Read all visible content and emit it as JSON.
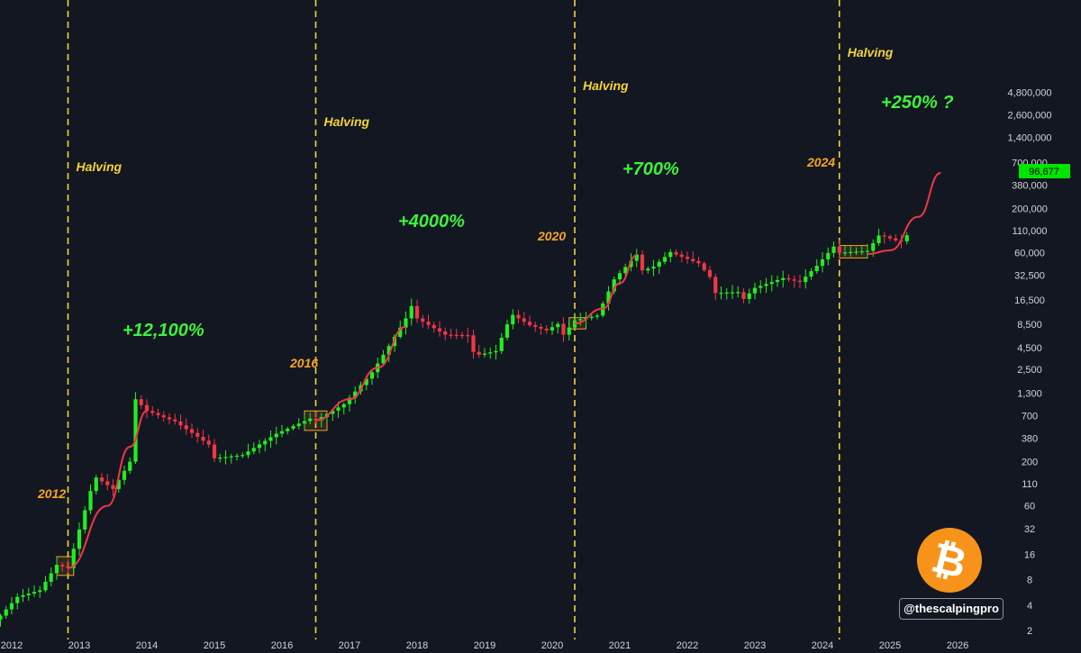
{
  "chart_data": {
    "type": "candlestick",
    "scale": "log",
    "y_ticks": [
      2,
      4,
      8,
      16,
      32,
      60,
      110,
      200,
      380,
      700,
      1300,
      2500,
      4500,
      8500,
      16500,
      32500,
      60000,
      110000,
      200000,
      380000,
      700000,
      1400000,
      2600000,
      4800000
    ],
    "y_tick_labels": [
      "2",
      "4",
      "8",
      "16",
      "32",
      "60",
      "110",
      "200",
      "380",
      "700",
      "1,300",
      "2,500",
      "4,500",
      "8,500",
      "16,500",
      "32,500",
      "60,000",
      "110,000",
      "200,000",
      "380,000",
      "700,000",
      "1,400,000",
      "2,600,000",
      "4,800,000"
    ],
    "x_ticks": [
      "2012",
      "2013",
      "2014",
      "2015",
      "2016",
      "2017",
      "2018",
      "2019",
      "2020",
      "2021",
      "2022",
      "2023",
      "2024",
      "2025",
      "2026"
    ],
    "last_price_label": "96,677",
    "halvings": [
      {
        "date": "2012-11",
        "label": "Halving"
      },
      {
        "date": "2016-07",
        "label": "Halving"
      },
      {
        "date": "2020-05",
        "label": "Halving"
      },
      {
        "date": "2024-04",
        "label": "Halving"
      }
    ],
    "cycle_labels": [
      {
        "year_label": "2012",
        "gain_label": "+12,100%"
      },
      {
        "year_label": "2016",
        "gain_label": "+4000%"
      },
      {
        "year_label": "2020",
        "gain_label": "+700%"
      },
      {
        "year_label": "2024",
        "gain_label": "+250% ?"
      }
    ],
    "anchors": [
      [
        "2011-11",
        3
      ],
      [
        "2012-02",
        5
      ],
      [
        "2012-06",
        6
      ],
      [
        "2012-09",
        12
      ],
      [
        "2012-11",
        11
      ],
      [
        "2013-03",
        90
      ],
      [
        "2013-04",
        130
      ],
      [
        "2013-07",
        95
      ],
      [
        "2013-10",
        200
      ],
      [
        "2013-11",
        1100
      ],
      [
        "2014-01",
        800
      ],
      [
        "2014-06",
        600
      ],
      [
        "2014-12",
        320
      ],
      [
        "2015-01",
        220
      ],
      [
        "2015-06",
        240
      ],
      [
        "2015-12",
        430
      ],
      [
        "2016-06",
        650
      ],
      [
        "2016-07",
        620
      ],
      [
        "2016-12",
        960
      ],
      [
        "2017-05",
        2300
      ],
      [
        "2017-08",
        4700
      ],
      [
        "2017-11",
        10000
      ],
      [
        "2017-12",
        14000
      ],
      [
        "2018-01",
        10000
      ],
      [
        "2018-06",
        6400
      ],
      [
        "2018-10",
        6300
      ],
      [
        "2018-11",
        4000
      ],
      [
        "2018-12",
        3700
      ],
      [
        "2019-03",
        4100
      ],
      [
        "2019-05",
        8500
      ],
      [
        "2019-06",
        11000
      ],
      [
        "2019-09",
        8300
      ],
      [
        "2019-12",
        7200
      ],
      [
        "2020-02",
        8600
      ],
      [
        "2020-03",
        6400
      ],
      [
        "2020-05",
        9500
      ],
      [
        "2020-09",
        10800
      ],
      [
        "2020-12",
        29000
      ],
      [
        "2021-04",
        57000
      ],
      [
        "2021-05",
        37000
      ],
      [
        "2021-07",
        41000
      ],
      [
        "2021-10",
        61000
      ],
      [
        "2021-11",
        57000
      ],
      [
        "2022-03",
        45000
      ],
      [
        "2022-05",
        31000
      ],
      [
        "2022-06",
        20000
      ],
      [
        "2022-10",
        20500
      ],
      [
        "2022-11",
        17000
      ],
      [
        "2023-01",
        23000
      ],
      [
        "2023-06",
        30000
      ],
      [
        "2023-09",
        27000
      ],
      [
        "2023-12",
        42000
      ],
      [
        "2024-03",
        71000
      ],
      [
        "2024-04",
        60000
      ],
      [
        "2024-09",
        63000
      ],
      [
        "2024-11",
        96000
      ],
      [
        "2024-12",
        94000
      ],
      [
        "2025-02",
        84000
      ],
      [
        "2025-03",
        82000
      ],
      [
        "2025-04",
        96677
      ]
    ],
    "projection_curves": [
      [
        [
          "2012-11",
          11
        ],
        [
          "2013-06",
          60
        ],
        [
          "2013-10",
          300
        ],
        [
          "2014-01",
          800
        ]
      ],
      [
        [
          "2016-07",
          620
        ],
        [
          "2017-01",
          1100
        ],
        [
          "2017-06",
          2600
        ],
        [
          "2017-11",
          8000
        ]
      ],
      [
        [
          "2020-05",
          8700
        ],
        [
          "2020-10",
          13000
        ],
        [
          "2021-01",
          26000
        ],
        [
          "2021-04",
          56000
        ]
      ],
      [
        [
          "2024-09",
          58000
        ],
        [
          "2025-01",
          64000
        ],
        [
          "2025-06",
          160000
        ],
        [
          "2025-10",
          530000
        ]
      ]
    ],
    "accumulation_boxes": [
      {
        "from": "2012-09",
        "to": "2012-12",
        "low": 9,
        "high": 15
      },
      {
        "from": "2016-05",
        "to": "2016-09",
        "low": 470,
        "high": 800
      },
      {
        "from": "2020-04",
        "to": "2020-07",
        "low": 7500,
        "high": 10200
      },
      {
        "from": "2024-04",
        "to": "2024-09",
        "low": 52000,
        "high": 73000
      }
    ],
    "colors": {
      "up": "#22ee22",
      "down": "#f23645",
      "halving_line": "#f5d33a",
      "curve": "#f23645",
      "box": "#f5a623",
      "price_tag": "#00e500",
      "background": "#131722"
    }
  },
  "watermark": {
    "handle": "@thescalpingpro",
    "logo_icon": "bitcoin-icon",
    "logo_glyph": "₿"
  }
}
